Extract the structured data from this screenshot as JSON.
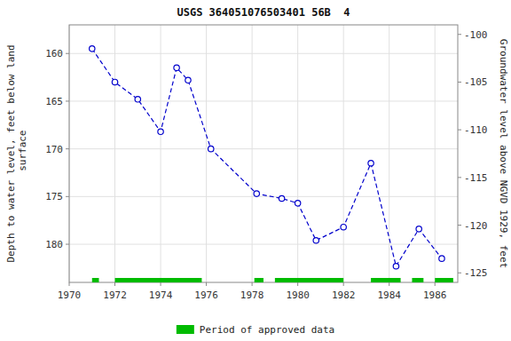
{
  "chart_data": {
    "type": "line",
    "title": "USGS 364051076503401 56B  4",
    "y_label": "Depth to water level, feet below land\n surface",
    "y2_label": "Groundwater level above NGVD 1929, feet",
    "x": [
      1971,
      1972,
      1973,
      1974,
      1974.7,
      1975.2,
      1976.2,
      1978.2,
      1979.3,
      1980.0,
      1980.8,
      1982.0,
      1983.2,
      1984.3,
      1985.3,
      1986.3
    ],
    "series": [
      {
        "color": "#0000CC",
        "marker": "circle",
        "line_style": "dashed",
        "values": [
          159.5,
          163.0,
          164.8,
          168.2,
          161.5,
          162.8,
          170.0,
          174.7,
          175.2,
          175.7,
          179.6,
          178.2,
          171.5,
          182.3,
          178.4,
          181.5
        ]
      }
    ],
    "xlim": [
      1970,
      1987
    ],
    "xticks": [
      1970,
      1972,
      1974,
      1976,
      1978,
      1980,
      1982,
      1984,
      1986
    ],
    "ylim": [
      184,
      157
    ],
    "yticks": [
      160,
      165,
      170,
      175,
      180
    ],
    "y2lim": [
      -126,
      -99
    ],
    "y2ticks": [
      -100,
      -105,
      -110,
      -115,
      -120,
      -125
    ],
    "grid": true,
    "approved_segments": [
      [
        1971.0,
        1971.3
      ],
      [
        1972.0,
        1975.8
      ],
      [
        1978.1,
        1978.5
      ],
      [
        1979.0,
        1982.0
      ],
      [
        1983.2,
        1984.5
      ],
      [
        1985.0,
        1985.5
      ],
      [
        1986.0,
        1986.8
      ]
    ],
    "approved_color": "#00BB00",
    "approved_label": "Period of approved data",
    "legend": "bottom"
  }
}
